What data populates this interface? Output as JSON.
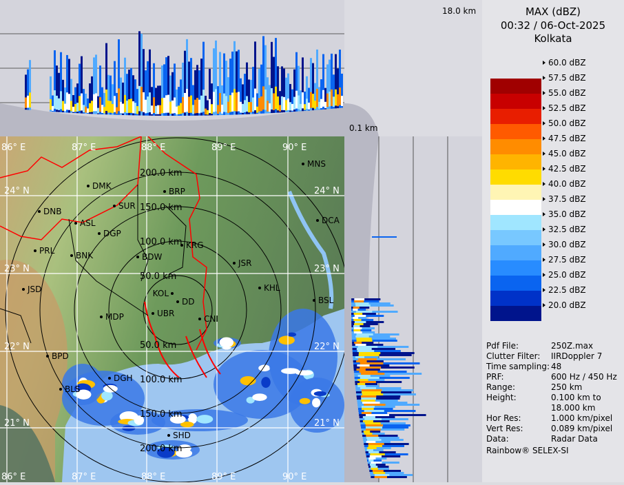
{
  "header": {
    "product": "MAX (dBZ)",
    "datetime": "00:32 / 06-Oct-2025",
    "site": "Kolkata"
  },
  "profile_labels": {
    "top_height": "18.0 km",
    "bottom_height": "0.1 km"
  },
  "legend": [
    {
      "label": "60.0 dBZ",
      "color": "#ffffff"
    },
    {
      "label": "57.5 dBZ",
      "color": "#a00000"
    },
    {
      "label": "55.0 dBZ",
      "color": "#c80000"
    },
    {
      "label": "52.5 dBZ",
      "color": "#e81e00"
    },
    {
      "label": "50.0 dBZ",
      "color": "#ff5a00"
    },
    {
      "label": "47.5 dBZ",
      "color": "#ff8c00"
    },
    {
      "label": "45.0 dBZ",
      "color": "#ffb400"
    },
    {
      "label": "42.5 dBZ",
      "color": "#ffdc00"
    },
    {
      "label": "40.0 dBZ",
      "color": "#fff5b4"
    },
    {
      "label": "37.5 dBZ",
      "color": "#ffffff"
    },
    {
      "label": "35.0 dBZ",
      "color": "#a0e6ff"
    },
    {
      "label": "32.5 dBZ",
      "color": "#78c8ff"
    },
    {
      "label": "30.0 dBZ",
      "color": "#50aaff"
    },
    {
      "label": "27.5 dBZ",
      "color": "#288cff"
    },
    {
      "label": "25.0 dBZ",
      "color": "#0a64f0"
    },
    {
      "label": "22.5 dBZ",
      "color": "#0032c8"
    },
    {
      "label": "20.0 dBZ",
      "color": "#00148c"
    }
  ],
  "info": [
    {
      "key": "Pdf File:",
      "value": "250Z.max"
    },
    {
      "key": "Clutter Filter:",
      "value": "IIRDoppler 7"
    },
    {
      "key": "Time sampling:",
      "value": "48"
    },
    {
      "key": "PRF:",
      "value": "600 Hz / 450 Hz"
    },
    {
      "key": "Range:",
      "value": "250 km"
    },
    {
      "key": "Height:",
      "value": "0.100 km to"
    },
    {
      "key": "",
      "value": "18.000 km"
    },
    {
      "key": "Hor Res:",
      "value": "1.000 km/pixel"
    },
    {
      "key": "Vert Res:",
      "value": "0.089 km/pixel"
    },
    {
      "key": "Data:",
      "value": "Radar Data"
    }
  ],
  "footer": "Rainbow® SELEX-SI",
  "map": {
    "lon_labels": [
      "86° E",
      "87° E",
      "88° E",
      "89° E",
      "90° E"
    ],
    "lat_labels": [
      "24° N",
      "23° N",
      "22° N",
      "21° N"
    ],
    "range_rings": [
      "50.0 km",
      "100.0 km",
      "150.0 km",
      "200.0 km"
    ],
    "cities": [
      "MNS",
      "DMK",
      "BRP",
      "SUR",
      "DNB",
      "ASL",
      "DGP",
      "DCA",
      "KRG",
      "PRL",
      "BNK",
      "BDW",
      "JSR",
      "JSD",
      "KHL",
      "BSL",
      "DD",
      "UBR",
      "KOL",
      "CNI",
      "MDP",
      "BPD",
      "DGH",
      "BLS",
      "SHD"
    ]
  }
}
